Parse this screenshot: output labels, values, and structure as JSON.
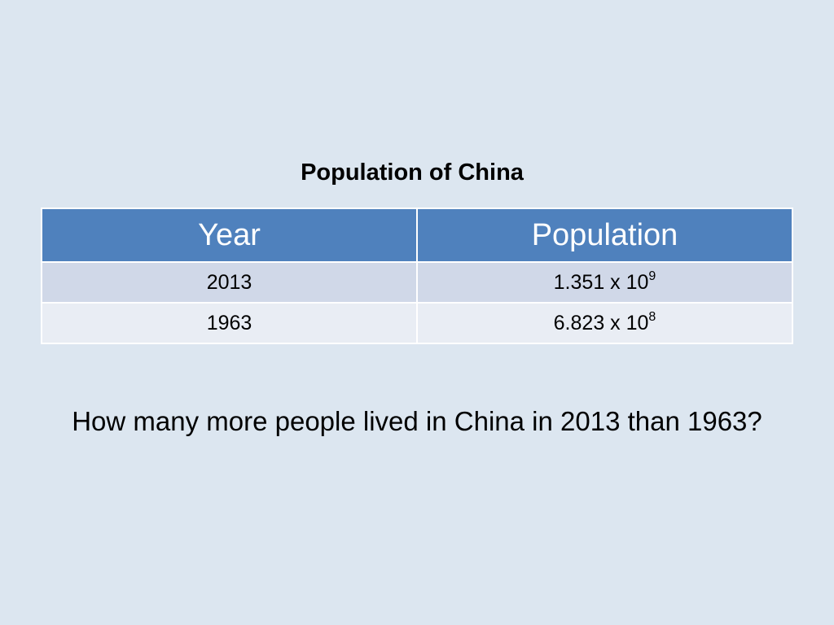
{
  "slide": {
    "title": "Population of China",
    "question": "How many more people lived in China in 2013 than 1963?"
  },
  "table": {
    "headers": [
      "Year",
      "Population"
    ],
    "rows": [
      {
        "year": "2013",
        "mantissa": "1.351 x 10",
        "exponent": "9"
      },
      {
        "year": "1963",
        "mantissa": "6.823 x 10",
        "exponent": "8"
      }
    ]
  },
  "colors": {
    "background": "#dce6f0",
    "header": "#4f81bd",
    "row_odd": "#d0d8e8",
    "row_even": "#e9edf4"
  }
}
